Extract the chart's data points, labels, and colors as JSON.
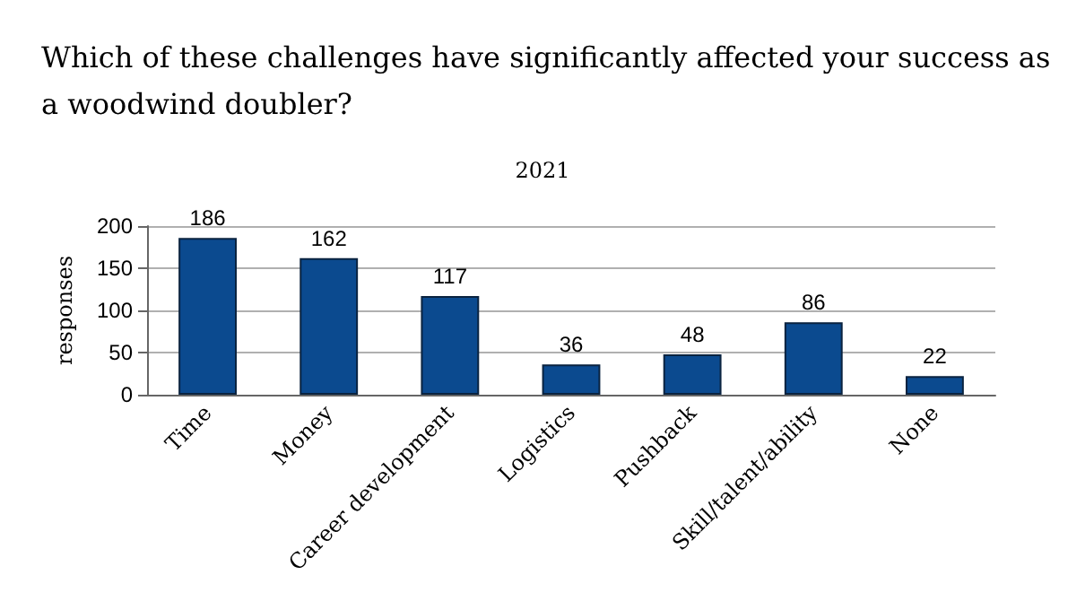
{
  "chart_data": {
    "type": "bar",
    "title": "Which of these challenges have significantly affected your success as a woodwind doubler?",
    "subtitle": "2021",
    "ylabel": "responses",
    "categories": [
      "Time",
      "Money",
      "Career development",
      "Logistics",
      "Pushback",
      "Skill/talent/ability",
      "None"
    ],
    "values": [
      186,
      162,
      117,
      36,
      48,
      86,
      22
    ],
    "color": "#0b4a8f",
    "ylim": [
      0,
      200
    ],
    "yticks": [
      0,
      50,
      100,
      150,
      200
    ],
    "grid": "y",
    "data_labels": true
  }
}
